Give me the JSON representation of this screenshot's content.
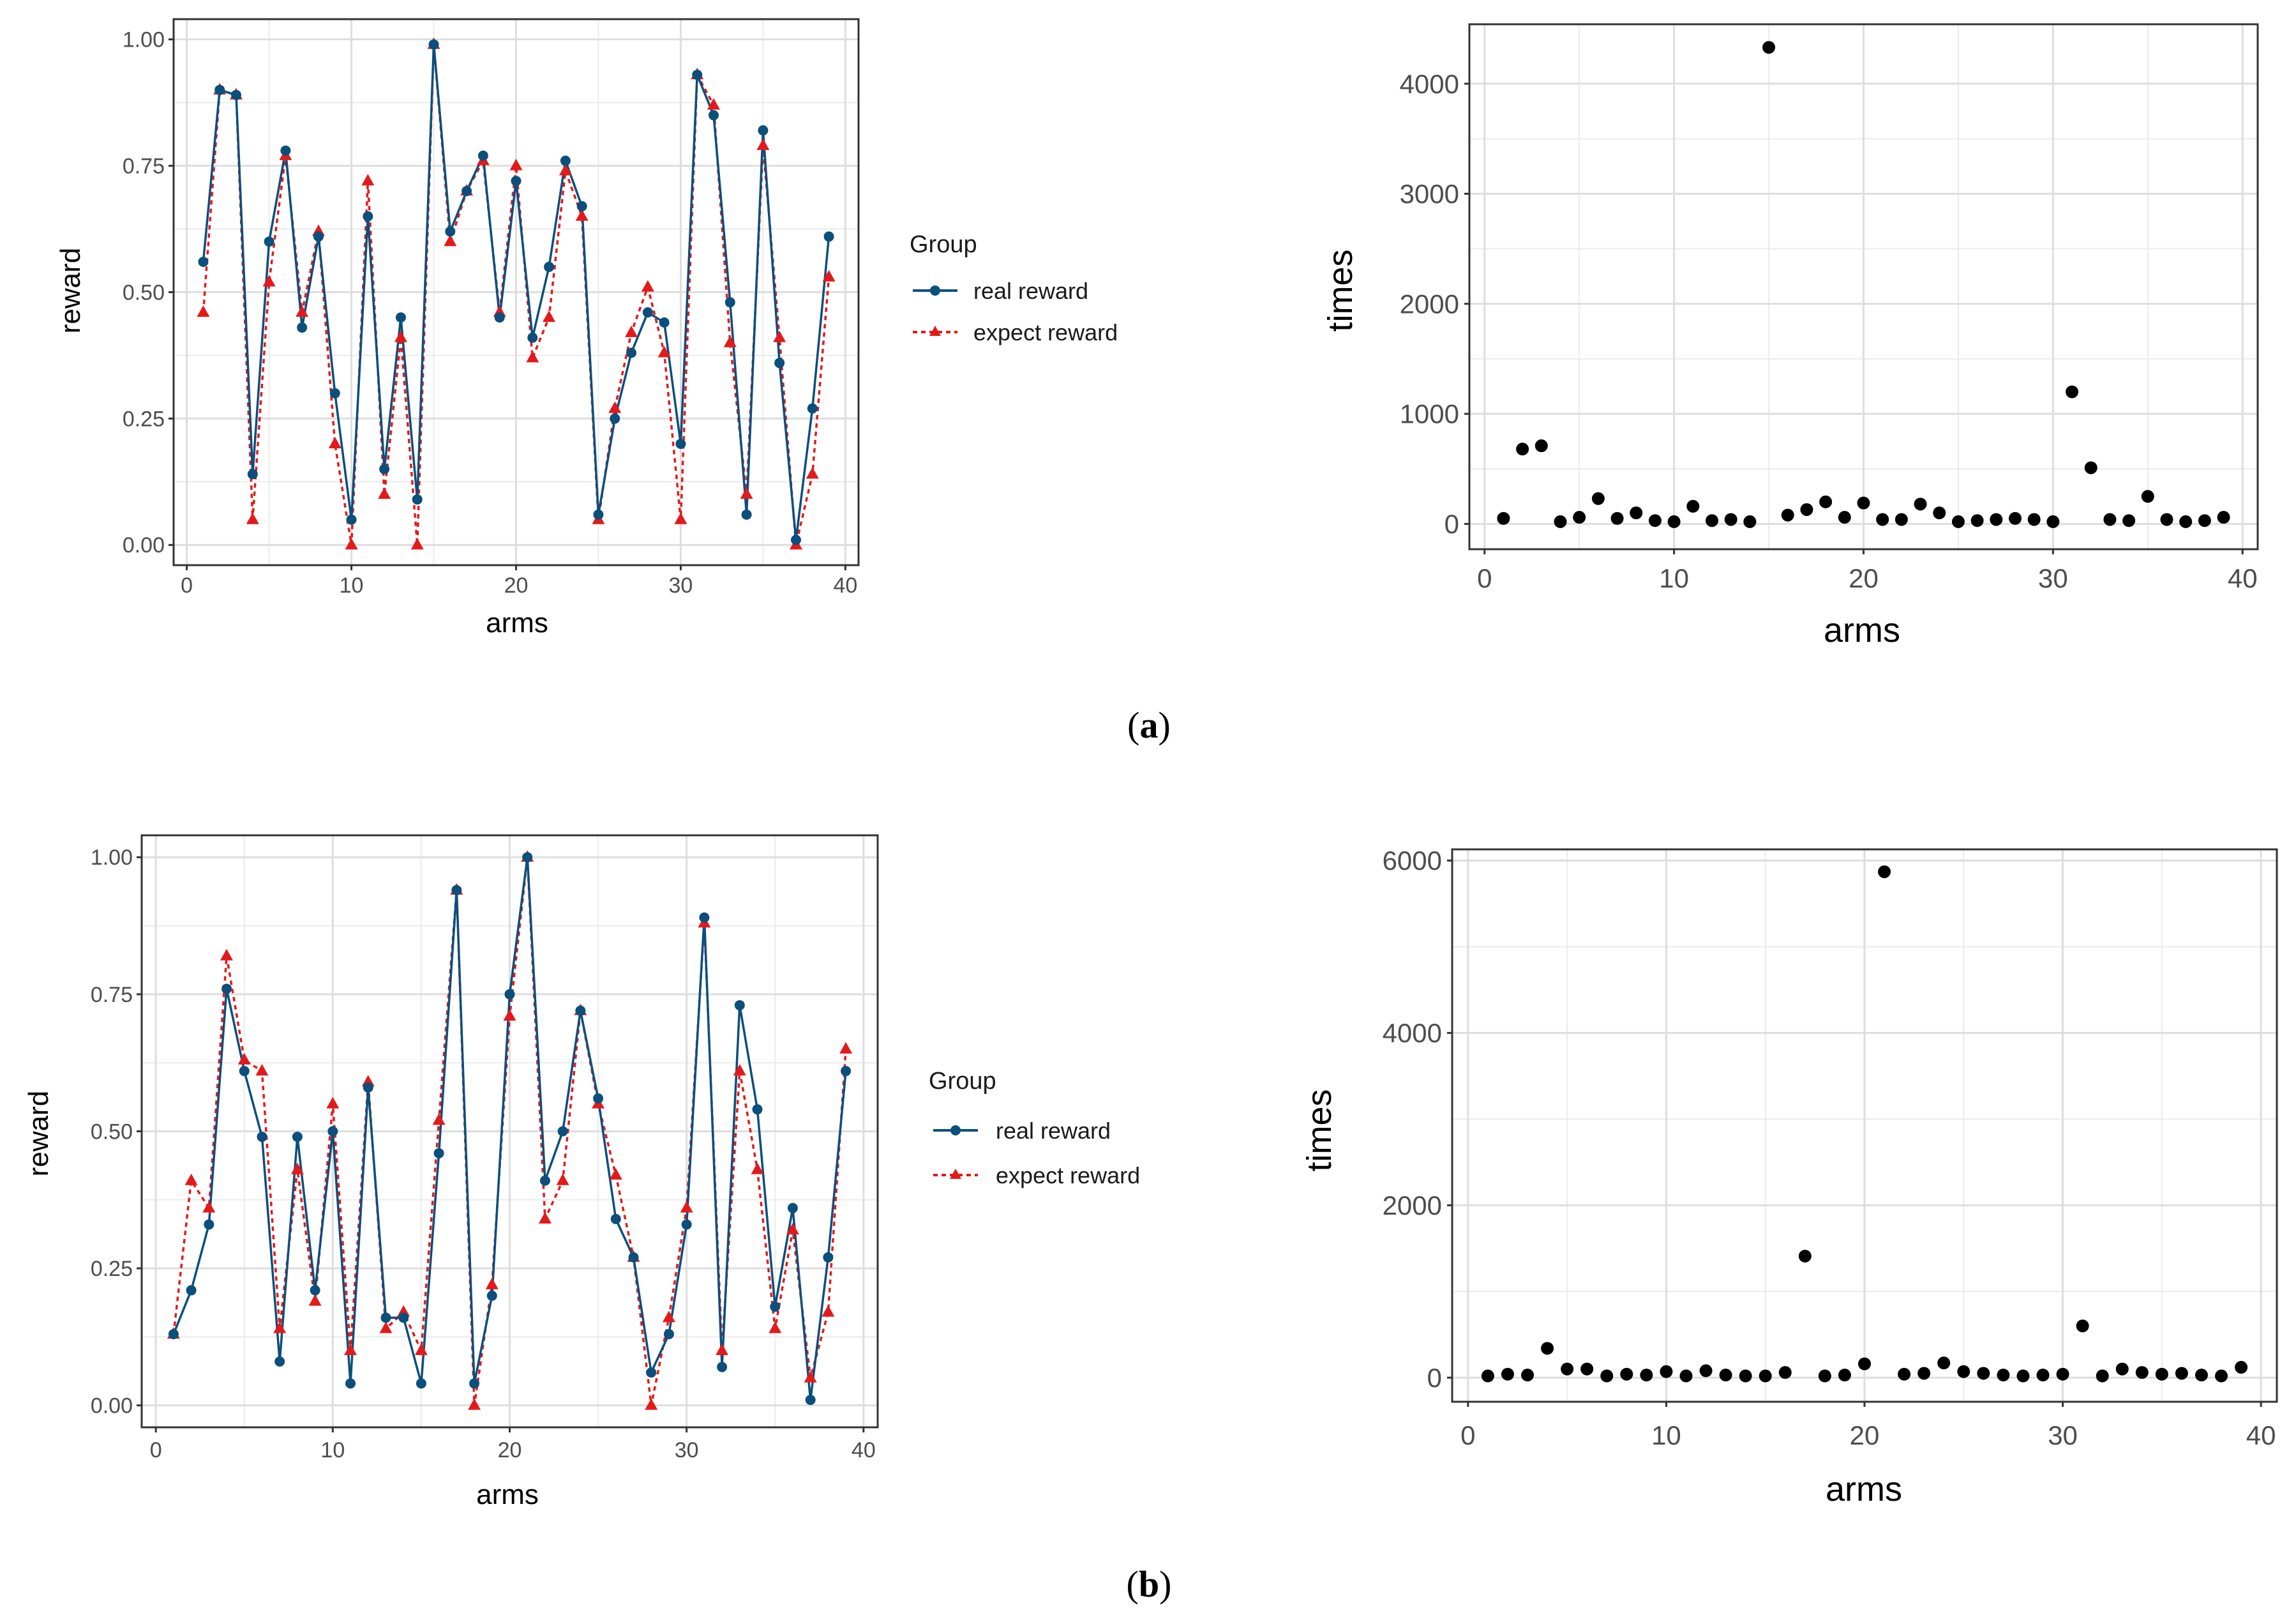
{
  "colors": {
    "real": "#0b4f7c",
    "expect": "#e31a1c",
    "dot": "#000000",
    "grid": "#ebebeb",
    "frame": "#333333"
  },
  "legend": {
    "title": "Group",
    "real_label": "real reward",
    "expect_label": "expect reward"
  },
  "captions": {
    "a_open": "(",
    "a_letter": "a",
    "a_close": ")",
    "b_open": "(",
    "b_letter": "b",
    "b_close": ")"
  },
  "chart_data": [
    {
      "id": "a-reward",
      "type": "line",
      "panel": "a",
      "xlabel": "arms",
      "ylabel": "reward",
      "xlim": [
        -0.8,
        40.8
      ],
      "ylim": [
        -0.04,
        1.04
      ],
      "xticks": [
        0,
        10,
        20,
        30,
        40
      ],
      "xtick_labels": [
        "0",
        "10",
        "20",
        "30",
        "40"
      ],
      "yticks": [
        0,
        0.25,
        0.5,
        0.75,
        1
      ],
      "ytick_labels": [
        "0.00",
        "0.25",
        "0.50",
        "0.75",
        "1.00"
      ],
      "legend": "right",
      "x": [
        1,
        2,
        3,
        4,
        5,
        6,
        7,
        8,
        9,
        10,
        11,
        12,
        13,
        14,
        15,
        16,
        17,
        18,
        19,
        20,
        21,
        22,
        23,
        24,
        25,
        26,
        27,
        28,
        29,
        30,
        31,
        32,
        33,
        34,
        35,
        36,
        37,
        38,
        39
      ],
      "series": [
        {
          "name": "real reward",
          "values": [
            0.56,
            0.9,
            0.89,
            0.14,
            0.6,
            0.78,
            0.43,
            0.61,
            0.3,
            0.05,
            0.65,
            0.15,
            0.45,
            0.09,
            0.99,
            0.62,
            0.7,
            0.77,
            0.45,
            0.72,
            0.41,
            0.55,
            0.76,
            0.67,
            0.06,
            0.25,
            0.38,
            0.46,
            0.44,
            0.2,
            0.93,
            0.85,
            0.48,
            0.06,
            0.82,
            0.36,
            0.01,
            0.27,
            0.61
          ]
        },
        {
          "name": "expect reward",
          "values": [
            0.46,
            0.9,
            0.89,
            0.05,
            0.52,
            0.77,
            0.46,
            0.62,
            0.2,
            0.0,
            0.72,
            0.1,
            0.41,
            0.0,
            0.99,
            0.6,
            0.7,
            0.76,
            0.46,
            0.75,
            0.37,
            0.45,
            0.74,
            0.65,
            0.05,
            0.27,
            0.42,
            0.51,
            0.38,
            0.05,
            0.93,
            0.87,
            0.4,
            0.1,
            0.79,
            0.41,
            0.0,
            0.14,
            0.53
          ]
        }
      ]
    },
    {
      "id": "a-times",
      "type": "scatter",
      "panel": "a",
      "xlabel": "arms",
      "ylabel": "times",
      "xlim": [
        -0.8,
        40.8
      ],
      "ylim": [
        -230,
        4540
      ],
      "xticks": [
        0,
        10,
        20,
        30,
        40
      ],
      "xtick_labels": [
        "0",
        "10",
        "20",
        "30",
        "40"
      ],
      "yticks": [
        0,
        1000,
        2000,
        3000,
        4000
      ],
      "ytick_labels": [
        "0",
        "1000",
        "2000",
        "3000",
        "4000"
      ],
      "x": [
        1,
        2,
        3,
        4,
        5,
        6,
        7,
        8,
        9,
        10,
        11,
        12,
        13,
        14,
        15,
        16,
        17,
        18,
        19,
        20,
        21,
        22,
        23,
        24,
        25,
        26,
        27,
        28,
        29,
        30,
        31,
        32,
        33,
        34,
        35,
        36,
        37,
        38,
        39
      ],
      "values": [
        50,
        680,
        710,
        20,
        60,
        230,
        50,
        100,
        30,
        20,
        160,
        30,
        40,
        20,
        4330,
        80,
        130,
        200,
        60,
        190,
        40,
        40,
        180,
        100,
        20,
        30,
        40,
        50,
        40,
        20,
        1200,
        510,
        40,
        30,
        250,
        40,
        20,
        30,
        60
      ]
    },
    {
      "id": "b-reward",
      "type": "line",
      "panel": "b",
      "xlabel": "arms",
      "ylabel": "reward",
      "xlim": [
        -0.8,
        40.8
      ],
      "ylim": [
        -0.04,
        1.04
      ],
      "xticks": [
        0,
        10,
        20,
        30,
        40
      ],
      "xtick_labels": [
        "0",
        "10",
        "20",
        "30",
        "40"
      ],
      "yticks": [
        0,
        0.25,
        0.5,
        0.75,
        1
      ],
      "ytick_labels": [
        "0.00",
        "0.25",
        "0.50",
        "0.75",
        "1.00"
      ],
      "legend": "right",
      "x": [
        1,
        2,
        3,
        4,
        5,
        6,
        7,
        8,
        9,
        10,
        11,
        12,
        13,
        14,
        15,
        16,
        17,
        18,
        19,
        20,
        21,
        22,
        23,
        24,
        25,
        26,
        27,
        28,
        29,
        30,
        31,
        32,
        33,
        34,
        35,
        36,
        37,
        38,
        39
      ],
      "series": [
        {
          "name": "real reward",
          "values": [
            0.13,
            0.21,
            0.33,
            0.76,
            0.61,
            0.49,
            0.08,
            0.49,
            0.21,
            0.5,
            0.04,
            0.58,
            0.16,
            0.16,
            0.04,
            0.46,
            0.94,
            0.04,
            0.2,
            0.75,
            1.0,
            0.41,
            0.5,
            0.72,
            0.56,
            0.34,
            0.27,
            0.06,
            0.13,
            0.33,
            0.89,
            0.07,
            0.73,
            0.54,
            0.18,
            0.36,
            0.01,
            0.27,
            0.61
          ]
        },
        {
          "name": "expect reward",
          "values": [
            0.13,
            0.41,
            0.36,
            0.82,
            0.63,
            0.61,
            0.14,
            0.43,
            0.19,
            0.55,
            0.1,
            0.59,
            0.14,
            0.17,
            0.1,
            0.52,
            0.94,
            0.0,
            0.22,
            0.71,
            1.0,
            0.34,
            0.41,
            0.72,
            0.55,
            0.42,
            0.27,
            0.0,
            0.16,
            0.36,
            0.88,
            0.1,
            0.61,
            0.43,
            0.14,
            0.32,
            0.05,
            0.17,
            0.65
          ]
        }
      ]
    },
    {
      "id": "b-times",
      "type": "scatter",
      "panel": "b",
      "xlabel": "arms",
      "ylabel": "times",
      "xlim": [
        -0.8,
        40.8
      ],
      "ylim": [
        -280,
        6130
      ],
      "xticks": [
        0,
        10,
        20,
        30,
        40
      ],
      "xtick_labels": [
        "0",
        "10",
        "20",
        "30",
        "40"
      ],
      "yticks": [
        0,
        2000,
        4000,
        6000
      ],
      "ytick_labels": [
        "0",
        "2000",
        "4000",
        "6000"
      ],
      "x": [
        1,
        2,
        3,
        4,
        5,
        6,
        7,
        8,
        9,
        10,
        11,
        12,
        13,
        14,
        15,
        16,
        17,
        18,
        19,
        20,
        21,
        22,
        23,
        24,
        25,
        26,
        27,
        28,
        29,
        30,
        31,
        32,
        33,
        34,
        35,
        36,
        37,
        38,
        39
      ],
      "values": [
        20,
        40,
        30,
        340,
        100,
        100,
        20,
        40,
        30,
        70,
        20,
        80,
        30,
        20,
        20,
        60,
        1410,
        20,
        30,
        160,
        5870,
        40,
        50,
        170,
        70,
        50,
        30,
        20,
        30,
        40,
        600,
        20,
        100,
        60,
        40,
        50,
        30,
        20,
        120
      ]
    }
  ]
}
